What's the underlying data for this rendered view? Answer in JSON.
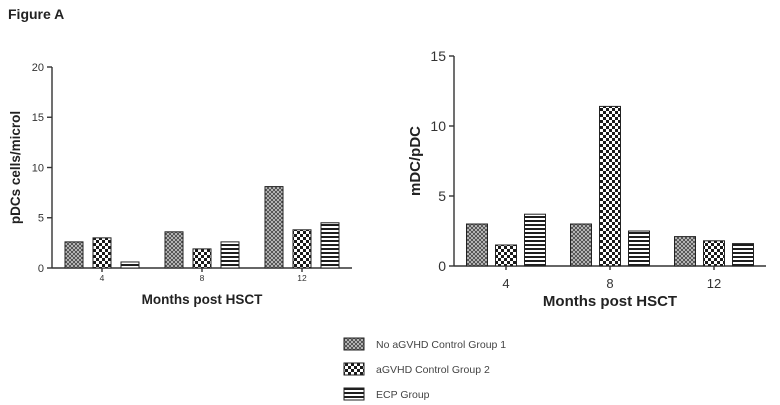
{
  "figure_label": "Figure A",
  "legend": [
    {
      "label": "No aGVHD Control Group 1",
      "pattern": "crosshatch"
    },
    {
      "label": "aGVHD Control Group 2",
      "pattern": "checker"
    },
    {
      "label": "ECP Group",
      "pattern": "stripes"
    }
  ],
  "chart_data": [
    {
      "type": "bar",
      "title": "",
      "xlabel": "Months post HSCT",
      "ylabel": "pDCs cells/microl",
      "ylim": [
        0,
        20
      ],
      "yticks": [
        0,
        5,
        10,
        15,
        20
      ],
      "categories": [
        "4",
        "8",
        "12"
      ],
      "series": [
        {
          "name": "No aGVHD Control Group 1",
          "values": [
            2.6,
            3.6,
            8.1
          ]
        },
        {
          "name": "aGVHD Control Group 2",
          "values": [
            3.0,
            1.9,
            3.8
          ]
        },
        {
          "name": "ECP Group",
          "values": [
            0.6,
            2.6,
            4.5
          ]
        }
      ]
    },
    {
      "type": "bar",
      "title": "",
      "xlabel": "Months post HSCT",
      "ylabel": "mDC/pDC",
      "ylim": [
        0,
        15
      ],
      "yticks": [
        0,
        5,
        10,
        15
      ],
      "categories": [
        "4",
        "8",
        "12"
      ],
      "series": [
        {
          "name": "No aGVHD Control Group 1",
          "values": [
            3.0,
            3.0,
            2.1
          ]
        },
        {
          "name": "aGVHD Control Group 2",
          "values": [
            1.5,
            11.4,
            1.8
          ]
        },
        {
          "name": "ECP Group",
          "values": [
            3.7,
            2.5,
            1.6
          ]
        }
      ]
    }
  ]
}
